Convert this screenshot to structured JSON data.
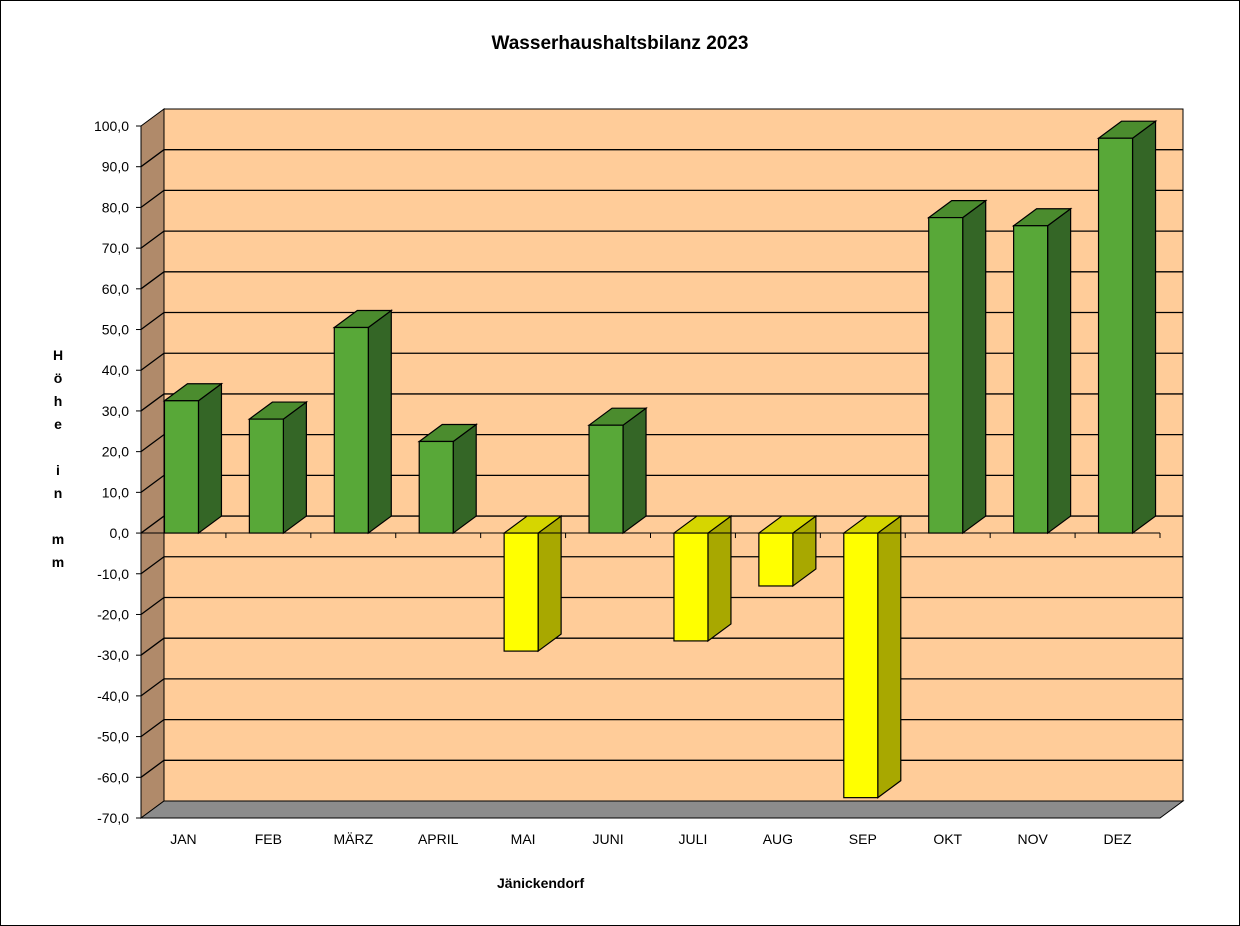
{
  "chart_data": {
    "type": "bar",
    "title": "Wasserhaushaltsbilanz 2023",
    "xlabel": "Jänickendorf",
    "ylabel": "H\nö\nh\ne\n\ni\nn\n\nm\nm",
    "categories": [
      "JAN",
      "FEB",
      "MÄRZ",
      "APRIL",
      "MAI",
      "JUNI",
      "JULI",
      "AUG",
      "SEP",
      "OKT",
      "NOV",
      "DEZ"
    ],
    "values": [
      32.5,
      28.0,
      50.5,
      22.5,
      -29.0,
      26.5,
      -26.5,
      -13.0,
      -65.0,
      77.5,
      75.5,
      97.0
    ],
    "ylim": [
      -70,
      100
    ],
    "yticks": [
      "-70,0",
      "-60,0",
      "-50,0",
      "-40,0",
      "-30,0",
      "-20,0",
      "-10,0",
      "0,0",
      "10,0",
      "20,0",
      "30,0",
      "40,0",
      "50,0",
      "60,0",
      "70,0",
      "80,0",
      "90,0",
      "100,0"
    ],
    "grid": true,
    "legend": "none",
    "colors": {
      "positive_front": "#58A838",
      "positive_top": "#4B8C2E",
      "positive_side": "#346626",
      "negative_front": "#FFFF00",
      "negative_top": "#D6D600",
      "negative_side": "#A8A800",
      "wall": "#FFCC99",
      "side_wall": "#B08A6A",
      "floor": "#8C8C8C"
    }
  }
}
